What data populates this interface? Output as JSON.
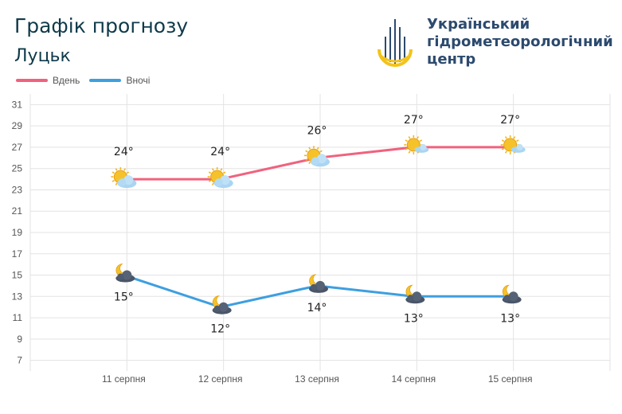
{
  "header": {
    "title": "Графік прогнозу",
    "city": "Луцьк"
  },
  "logo": {
    "line1": "Український",
    "line2": "гідрометеорологічний",
    "line3": "центр",
    "icon": "drop-logo-icon"
  },
  "legend": {
    "day_label": "Вдень",
    "night_label": "Вночі"
  },
  "colors": {
    "day": "#f0627e",
    "night": "#3d9fe0",
    "grid": "#e3e3e3",
    "axis_text": "#555555"
  },
  "chart_data": {
    "type": "line",
    "categories": [
      "11 серпня",
      "12 серпня",
      "13 серпня",
      "14 серпня",
      "15 серпня"
    ],
    "series": [
      {
        "name": "Вдень",
        "values": [
          24,
          24,
          26,
          27,
          27
        ],
        "labels": [
          "24°",
          "24°",
          "26°",
          "27°",
          "27°"
        ],
        "icons": [
          "sun-cloud-icon",
          "sun-cloud-icon",
          "sun-cloud-icon",
          "sun-small-cloud-icon",
          "sun-small-cloud-icon"
        ]
      },
      {
        "name": "Вночі",
        "values": [
          15,
          12,
          14,
          13,
          13
        ],
        "labels": [
          "15°",
          "12°",
          "14°",
          "13°",
          "13°"
        ],
        "icons": [
          "moon-cloud-icon",
          "moon-cloud-icon",
          "moon-cloud-icon",
          "moon-cloud-icon",
          "moon-cloud-icon"
        ]
      }
    ],
    "yticks": [
      7,
      9,
      11,
      13,
      15,
      17,
      19,
      21,
      23,
      25,
      27,
      29,
      31
    ],
    "ylim": [
      6,
      32
    ],
    "grid": true,
    "legend_position": "top-left"
  }
}
